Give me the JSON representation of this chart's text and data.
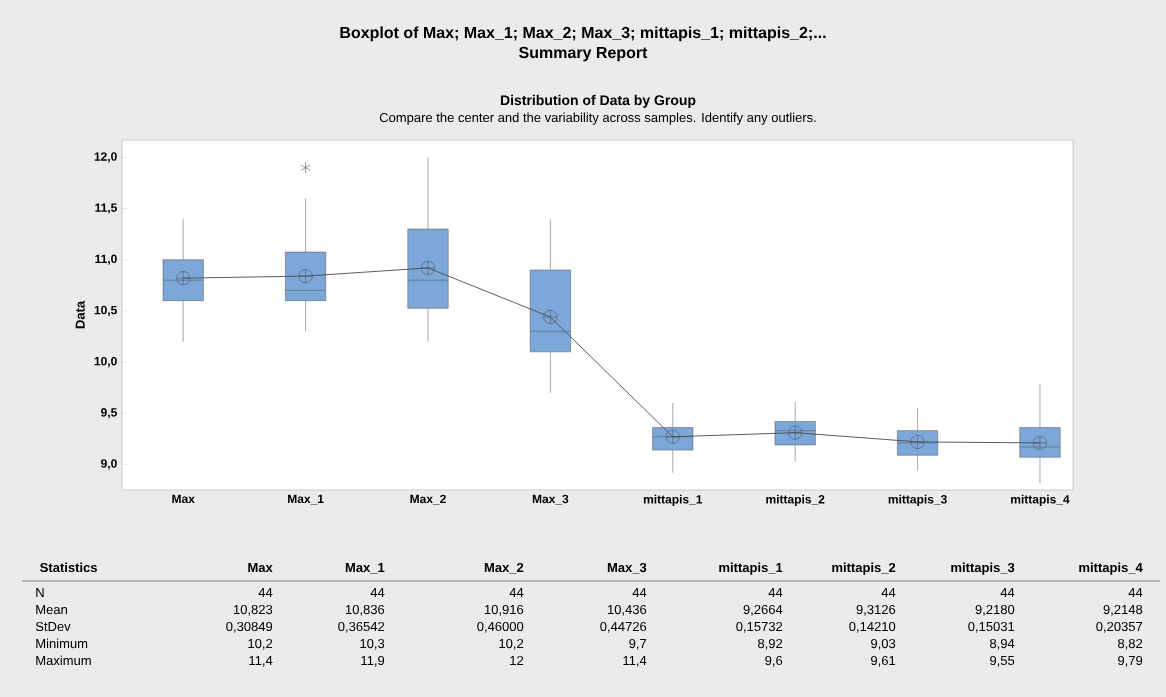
{
  "chart_data": {
    "type": "box",
    "title": "Boxplot of Max; Max_1; Max_2; Max_3; mittapis_1; mittapis_2;...",
    "subtitle": "Summary Report",
    "ylabel": "Data",
    "categories": [
      "Max",
      "Max_1",
      "Max_2",
      "Max_3",
      "mittapis_1",
      "mittapis_2",
      "mittapis_3",
      "mittapis_4"
    ],
    "ylim": [
      8.75,
      12.17
    ],
    "yticks": [
      {
        "value": 9,
        "label": "9,0"
      },
      {
        "value": 9.5,
        "label": "9,5"
      },
      {
        "value": 10,
        "label": "10,0"
      },
      {
        "value": 10.5,
        "label": "10,5"
      },
      {
        "value": 11,
        "label": "11,0"
      },
      {
        "value": 11.5,
        "label": "11,5"
      },
      {
        "value": 12,
        "label": "12,0"
      }
    ],
    "series": [
      {
        "color": "#7ba7d9",
        "boxes": [
          {
            "low": 10.2,
            "q1": 10.6,
            "median": 10.8,
            "q3": 11.0,
            "high": 11.4,
            "mean": 10.82
          },
          {
            "low": 10.3,
            "q1": 10.6,
            "median": 10.7,
            "q3": 11.075,
            "high": 11.6,
            "mean": 10.84,
            "outliers": [
              11.9
            ]
          },
          {
            "low": 10.2,
            "q1": 10.525,
            "median": 10.8,
            "q3": 11.3,
            "high": 12.0,
            "mean": 10.92
          },
          {
            "low": 9.7,
            "q1": 10.1,
            "median": 10.3,
            "q3": 10.9,
            "high": 11.4,
            "mean": 10.44
          },
          {
            "low": 8.92,
            "q1": 9.14,
            "median": 9.27,
            "q3": 9.36,
            "high": 9.6,
            "mean": 9.27
          },
          {
            "low": 9.03,
            "q1": 9.19,
            "median": 9.33,
            "q3": 9.42,
            "high": 9.61,
            "mean": 9.31
          },
          {
            "low": 8.94,
            "q1": 9.09,
            "median": 9.21,
            "q3": 9.33,
            "high": 9.55,
            "mean": 9.22
          },
          {
            "low": 8.82,
            "q1": 9.07,
            "median": 9.17,
            "q3": 9.36,
            "high": 9.79,
            "mean": 9.21
          }
        ]
      },
      {
        "type": "line",
        "color": "#505050",
        "values": [
          10.82,
          10.84,
          10.92,
          10.44,
          9.27,
          9.31,
          9.22,
          9.21
        ]
      }
    ],
    "annotations": [
      "Distribution of Data by Group",
      "Compare the center and the variability across samples. Identify any outliers.",
      "Statistics",
      "N",
      "44",
      "44",
      "44",
      "44",
      "44",
      "44",
      "44",
      "44",
      "Mean",
      "10,823",
      "10,836",
      "10,916",
      "10,436",
      "9,2664",
      "9,3126",
      "9,2180",
      "9,2148",
      "StDev",
      "0,30849",
      "0,36542",
      "0,46000",
      "0,44726",
      "0,15732",
      "0,14210",
      "0,15031",
      "0,20357",
      "Minimum",
      "10,2",
      "10,3",
      "10,2",
      "9,7",
      "8,92",
      "9,03",
      "8,94",
      "8,82",
      "Maximum",
      "11,4",
      "11,9",
      "12",
      "11,4",
      "9,6",
      "9,61",
      "9,55",
      "9,79"
    ]
  }
}
